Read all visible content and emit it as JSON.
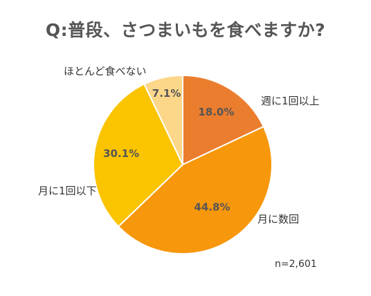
{
  "chart_data": {
    "type": "pie",
    "title": "Q:普段、さつまいもを食べますか?",
    "slices": [
      {
        "label": "週に1回以上",
        "value": 18.0,
        "display": "18.0%",
        "color": "#EB7D2E"
      },
      {
        "label": "月に数回",
        "value": 44.8,
        "display": "44.8%",
        "color": "#F7970C"
      },
      {
        "label": "月に1回以下",
        "value": 30.1,
        "display": "30.1%",
        "color": "#FAC400"
      },
      {
        "label": "ほとんど食べない",
        "value": 7.1,
        "display": "7.1%",
        "color": "#FCD78A"
      }
    ],
    "note": "n=2,601"
  }
}
